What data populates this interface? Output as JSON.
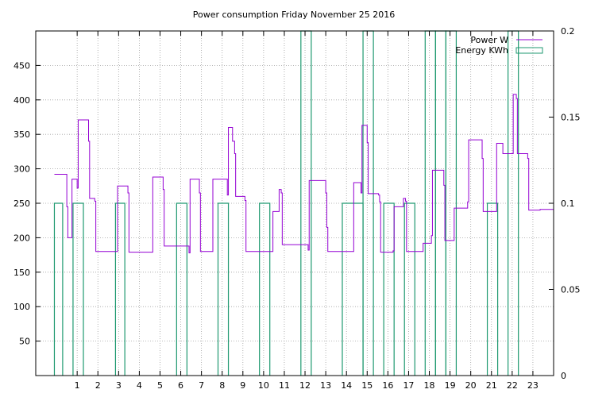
{
  "chart_data": {
    "type": "line",
    "title": "Power consumption Friday November 25 2016",
    "xlim": [
      -1,
      24
    ],
    "ylim": [
      0,
      500
    ],
    "y2lim": [
      0,
      0.2
    ],
    "x_ticks": [
      1,
      2,
      3,
      4,
      5,
      6,
      7,
      8,
      9,
      10,
      11,
      12,
      13,
      14,
      15,
      16,
      17,
      18,
      19,
      20,
      21,
      22,
      23
    ],
    "y_ticks": [
      50,
      100,
      150,
      200,
      250,
      300,
      350,
      400,
      450
    ],
    "y2_ticks": [
      0,
      0.05,
      0.1,
      0.15,
      0.2
    ],
    "y2_tick_labels": [
      "0",
      "0.05",
      "0.1",
      "0.15",
      "0.2"
    ],
    "grid": true,
    "legend_position": "top-right",
    "series": [
      {
        "name": "Power W",
        "axis": "y",
        "style": "steps",
        "color": "#9400d3",
        "points": [
          [
            -0.1,
            292
          ],
          [
            0.5,
            245
          ],
          [
            0.55,
            200
          ],
          [
            0.7,
            200
          ],
          [
            0.75,
            285
          ],
          [
            1.0,
            272
          ],
          [
            1.05,
            371
          ],
          [
            1.5,
            371
          ],
          [
            1.55,
            340
          ],
          [
            1.6,
            257
          ],
          [
            1.85,
            253
          ],
          [
            1.9,
            180
          ],
          [
            2.9,
            180
          ],
          [
            2.95,
            275
          ],
          [
            3.4,
            275
          ],
          [
            3.45,
            265
          ],
          [
            3.5,
            179
          ],
          [
            4.6,
            179
          ],
          [
            4.65,
            288
          ],
          [
            5.1,
            288
          ],
          [
            5.15,
            270
          ],
          [
            5.2,
            188
          ],
          [
            6.35,
            188
          ],
          [
            6.4,
            178
          ],
          [
            6.45,
            285
          ],
          [
            6.85,
            285
          ],
          [
            6.9,
            265
          ],
          [
            6.95,
            180
          ],
          [
            7.5,
            180
          ],
          [
            7.55,
            285
          ],
          [
            8.2,
            285
          ],
          [
            8.25,
            262
          ],
          [
            8.3,
            360
          ],
          [
            8.45,
            360
          ],
          [
            8.5,
            340
          ],
          [
            8.6,
            322
          ],
          [
            8.65,
            260
          ],
          [
            9.05,
            260
          ],
          [
            9.1,
            254
          ],
          [
            9.15,
            180
          ],
          [
            10.4,
            180
          ],
          [
            10.45,
            238
          ],
          [
            10.7,
            238
          ],
          [
            10.75,
            270
          ],
          [
            10.85,
            265
          ],
          [
            10.9,
            190
          ],
          [
            12.1,
            190
          ],
          [
            12.15,
            182
          ],
          [
            12.2,
            283
          ],
          [
            12.95,
            283
          ],
          [
            13.0,
            265
          ],
          [
            13.05,
            215
          ],
          [
            13.1,
            180
          ],
          [
            14.3,
            180
          ],
          [
            14.35,
            280
          ],
          [
            14.65,
            280
          ],
          [
            14.7,
            265
          ],
          [
            14.75,
            363
          ],
          [
            14.95,
            363
          ],
          [
            15.0,
            338
          ],
          [
            15.05,
            264
          ],
          [
            15.55,
            262
          ],
          [
            15.6,
            252
          ],
          [
            15.65,
            179
          ],
          [
            16.25,
            181
          ],
          [
            16.3,
            245
          ],
          [
            16.7,
            245
          ],
          [
            16.75,
            257
          ],
          [
            16.85,
            253
          ],
          [
            16.9,
            180
          ],
          [
            17.65,
            180
          ],
          [
            17.7,
            192
          ],
          [
            18.05,
            192
          ],
          [
            18.1,
            203
          ],
          [
            18.15,
            298
          ],
          [
            18.65,
            298
          ],
          [
            18.7,
            276
          ],
          [
            18.75,
            196
          ],
          [
            19.15,
            196
          ],
          [
            19.2,
            243
          ],
          [
            19.8,
            243
          ],
          [
            19.85,
            252
          ],
          [
            19.9,
            342
          ],
          [
            20.5,
            342
          ],
          [
            20.55,
            315
          ],
          [
            20.6,
            238
          ],
          [
            21.2,
            238
          ],
          [
            21.25,
            337
          ],
          [
            21.5,
            337
          ],
          [
            21.55,
            322
          ],
          [
            22.0,
            322
          ],
          [
            22.05,
            408
          ],
          [
            22.2,
            402
          ],
          [
            22.25,
            322
          ],
          [
            22.7,
            322
          ],
          [
            22.75,
            315
          ],
          [
            22.8,
            240
          ],
          [
            23.3,
            240
          ],
          [
            23.35,
            241
          ],
          [
            24.0,
            241
          ]
        ]
      },
      {
        "name": "Energy KWh",
        "axis": "y2",
        "style": "boxes",
        "color": "#1f9970",
        "boxes": [
          [
            -0.1,
            0.3,
            0.1
          ],
          [
            0.8,
            1.3,
            0.1
          ],
          [
            2.85,
            3.3,
            0.1
          ],
          [
            5.8,
            6.3,
            0.1
          ],
          [
            7.8,
            8.3,
            0.1
          ],
          [
            9.8,
            10.3,
            0.1
          ],
          [
            11.8,
            12.3,
            0.2
          ],
          [
            13.8,
            14.8,
            0.1
          ],
          [
            14.8,
            15.3,
            0.2
          ],
          [
            15.8,
            16.3,
            0.1
          ],
          [
            16.8,
            17.3,
            0.1
          ],
          [
            17.8,
            18.3,
            0.2
          ],
          [
            18.3,
            18.8,
            0.2
          ],
          [
            18.8,
            19.3,
            0.2
          ],
          [
            20.8,
            21.3,
            0.1
          ],
          [
            21.8,
            22.3,
            0.2
          ]
        ]
      }
    ]
  }
}
